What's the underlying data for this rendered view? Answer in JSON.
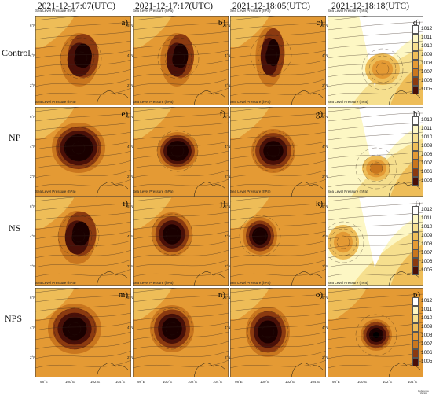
{
  "columns": [
    "2021-12-17:07(UTC)",
    "2021-12-17:17(UTC)",
    "2021-12-18:05(UTC)",
    "2021-12-18:18(UTC)"
  ],
  "rows": [
    "Control",
    "NP",
    "NS",
    "NPS"
  ],
  "panel_caption": "Sea Level Pressure (hPa)",
  "panel_labels": [
    "a)",
    "b)",
    "c)",
    "d)",
    "e)",
    "f)",
    "g)",
    "h)",
    "i)",
    "j)",
    "k)",
    "l)",
    "m)",
    "n)",
    "o)",
    "p)"
  ],
  "x_ticks": [
    "98°E",
    "100°E",
    "102°E",
    "104°E"
  ],
  "y_ticks": [
    "6°N",
    "4°N",
    "2°N"
  ],
  "colorbar_ticks": [
    "1012",
    "1011",
    "1010",
    "1009",
    "1008",
    "1007",
    "1006",
    "1005"
  ],
  "colors": {
    "levels": [
      "#ffffff",
      "#fdf7c4",
      "#f6df8e",
      "#eebd58",
      "#e49a34",
      "#c9761e",
      "#8b3a10",
      "#4a1008",
      "#1a0000"
    ]
  },
  "footnote": "Reference Vector"
}
